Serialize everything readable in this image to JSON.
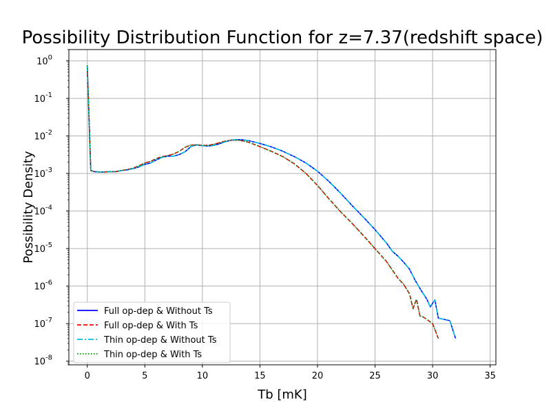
{
  "chart_data": {
    "type": "line",
    "title": "Possibility Distribution Function for z=7.37(redshift space)",
    "xlabel": "Tb [mK]",
    "ylabel": "Possibility Density",
    "xlim": [
      -1.6,
      35.5
    ],
    "ylim": [
      8e-09,
      2
    ],
    "yscale": "log",
    "grid": true,
    "legend_position": "lower-left",
    "x_ticks": [
      0,
      5,
      10,
      15,
      20,
      25,
      30,
      35
    ],
    "x_tick_labels": [
      "0",
      "5",
      "10",
      "15",
      "20",
      "25",
      "30",
      "35"
    ],
    "y_ticks": [
      1e-08,
      1e-07,
      1e-06,
      1e-05,
      0.0001,
      0.001,
      0.01,
      0.1,
      1
    ],
    "y_tick_exponents": [
      "-8",
      "-7",
      "-6",
      "-5",
      "-4",
      "-3",
      "-2",
      "-1",
      "0"
    ],
    "y_tick_base": "10",
    "series": [
      {
        "name": "Full op-dep & Without Ts",
        "color": "#0000ff",
        "style": "solid",
        "x": [
          0,
          0.3,
          0.6,
          1,
          1.5,
          2,
          2.5,
          3,
          3.5,
          4,
          4.5,
          5,
          5.5,
          6,
          6.5,
          7,
          7.5,
          8,
          8.5,
          9,
          9.5,
          10,
          10.5,
          11,
          11.5,
          12,
          12.5,
          13,
          13.5,
          14,
          15,
          16,
          17,
          18,
          19,
          20,
          21,
          22,
          23,
          24,
          25,
          26,
          26.5,
          27,
          27.5,
          28,
          28.5,
          29,
          29.5,
          29.8,
          30,
          30.2,
          30.5,
          31,
          31.5,
          32
        ],
        "y": [
          0.75,
          0.0012,
          0.00112,
          0.0011,
          0.0011,
          0.00112,
          0.00112,
          0.0012,
          0.00125,
          0.00135,
          0.0015,
          0.00175,
          0.0019,
          0.0023,
          0.0027,
          0.0029,
          0.0029,
          0.0032,
          0.0038,
          0.0052,
          0.0058,
          0.0055,
          0.0054,
          0.0056,
          0.0062,
          0.007,
          0.0077,
          0.008,
          0.0079,
          0.0075,
          0.0063,
          0.0051,
          0.0039,
          0.0028,
          0.0019,
          0.00115,
          0.00061,
          0.0003,
          0.00014,
          6.8e-05,
          3.2e-05,
          1.4e-05,
          8.5e-06,
          6.2e-06,
          4.3e-06,
          2.8e-06,
          1.4e-06,
          7.7e-07,
          4.5e-07,
          2.8e-07,
          3.5e-07,
          4.3e-07,
          1.4e-07,
          1.3e-07,
          1.2e-07,
          4e-08
        ]
      },
      {
        "name": "Full op-dep & With Ts",
        "color": "#ff0000",
        "style": "dashed",
        "x": [
          0,
          0.3,
          0.6,
          1,
          1.5,
          2,
          2.5,
          3,
          3.5,
          4,
          4.5,
          5,
          5.5,
          6,
          6.5,
          7,
          7.5,
          8,
          8.5,
          9,
          9.5,
          10,
          10.5,
          11,
          11.5,
          12,
          12.5,
          13,
          13.5,
          14,
          15,
          16,
          17,
          18,
          19,
          20,
          21,
          22,
          23,
          24,
          25,
          26,
          27,
          27.5,
          28,
          28.3,
          28.6,
          28.9,
          29.2,
          29.5,
          30,
          30.2,
          30.5
        ],
        "y": [
          0.75,
          0.0012,
          0.00112,
          0.0011,
          0.0011,
          0.00112,
          0.00112,
          0.0012,
          0.00128,
          0.0014,
          0.0016,
          0.0019,
          0.0021,
          0.0025,
          0.0028,
          0.003,
          0.0033,
          0.0039,
          0.005,
          0.0057,
          0.0058,
          0.0056,
          0.0056,
          0.006,
          0.0066,
          0.0073,
          0.0077,
          0.0078,
          0.0074,
          0.0068,
          0.0052,
          0.0039,
          0.0028,
          0.0018,
          0.001,
          0.00048,
          0.00021,
          9.6e-05,
          4.7e-05,
          2.2e-05,
          9.9e-06,
          4.5e-06,
          1.6e-06,
          1.1e-06,
          6.2e-07,
          2.5e-07,
          4.5e-07,
          1.6e-07,
          1.5e-07,
          1.3e-07,
          1e-07,
          7e-08,
          4e-08
        ]
      },
      {
        "name": "Thin op-dep & Without Ts",
        "color": "#00bfdf",
        "style": "dashdot",
        "ref": 0
      },
      {
        "name": "Thin op-dep & With Ts",
        "color": "#008000",
        "style": "dotted",
        "ref": 1
      }
    ]
  }
}
